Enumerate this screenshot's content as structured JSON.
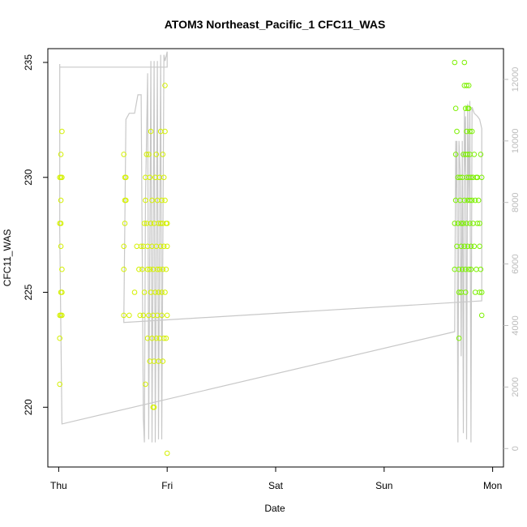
{
  "chart_data": {
    "type": "scatter",
    "title": "ATOM3 Northeast_Pacific_1 CFC11_WAS",
    "xlabel": "Date",
    "ylabel": "CFC11_WAS",
    "x_ticks": [
      {
        "label": "Thu",
        "value": 0
      },
      {
        "label": "Fri",
        "value": 1
      },
      {
        "label": "Sat",
        "value": 2
      },
      {
        "label": "Sun",
        "value": 3
      },
      {
        "label": "Mon",
        "value": 4
      }
    ],
    "x_unit": "days from Thu",
    "xlim": [
      -0.1,
      4.1
    ],
    "ylim": [
      217.4,
      235.6
    ],
    "y_ticks": [
      220,
      225,
      230,
      235
    ],
    "y2_label": "",
    "y2lim": [
      -600,
      13000
    ],
    "y2_ticks": [
      0,
      2000,
      4000,
      6000,
      8000,
      10000,
      12000
    ],
    "colors": {
      "axis": "#000000",
      "axis_right": "#bbbbbb",
      "altitude_line": "#c8c8c8",
      "points_early": "#d4f000",
      "points_late": "#7cf000"
    },
    "series": [
      {
        "name": "CFC11_WAS",
        "points": [
          [
            0.01,
            221
          ],
          [
            0.01,
            223
          ],
          [
            0.01,
            224
          ],
          [
            0.02,
            224
          ],
          [
            0.02,
            225
          ],
          [
            0.01,
            228
          ],
          [
            0.02,
            228
          ],
          [
            0.02,
            229
          ],
          [
            0.01,
            230
          ],
          [
            0.02,
            230
          ],
          [
            0.03,
            230
          ],
          [
            0.02,
            231
          ],
          [
            0.03,
            232
          ],
          [
            0.03,
            226
          ],
          [
            0.02,
            227
          ],
          [
            0.03,
            224
          ],
          [
            0.03,
            225
          ],
          [
            0.6,
            224
          ],
          [
            0.6,
            226
          ],
          [
            0.6,
            227
          ],
          [
            0.61,
            228
          ],
          [
            0.61,
            229
          ],
          [
            0.61,
            230
          ],
          [
            0.62,
            229
          ],
          [
            0.6,
            231
          ],
          [
            0.62,
            230
          ],
          [
            0.65,
            224
          ],
          [
            0.7,
            225
          ],
          [
            0.72,
            227
          ],
          [
            0.74,
            226
          ],
          [
            0.75,
            224
          ],
          [
            0.76,
            227
          ],
          [
            0.77,
            226
          ],
          [
            0.78,
            227
          ],
          [
            0.78,
            224
          ],
          [
            0.79,
            228
          ],
          [
            0.79,
            225
          ],
          [
            0.8,
            221
          ],
          [
            0.8,
            229
          ],
          [
            0.8,
            230
          ],
          [
            0.81,
            231
          ],
          [
            0.81,
            228
          ],
          [
            0.82,
            226
          ],
          [
            0.82,
            223
          ],
          [
            0.82,
            227
          ],
          [
            0.83,
            231
          ],
          [
            0.83,
            224
          ],
          [
            0.84,
            230
          ],
          [
            0.84,
            226
          ],
          [
            0.84,
            222
          ],
          [
            0.85,
            228
          ],
          [
            0.85,
            225
          ],
          [
            0.86,
            223
          ],
          [
            0.86,
            229
          ],
          [
            0.86,
            227
          ],
          [
            0.87,
            224
          ],
          [
            0.87,
            226
          ],
          [
            0.88,
            228
          ],
          [
            0.88,
            222
          ],
          [
            0.88,
            220
          ],
          [
            0.89,
            230
          ],
          [
            0.89,
            225
          ],
          [
            0.9,
            227
          ],
          [
            0.9,
            231
          ],
          [
            0.9,
            223
          ],
          [
            0.91,
            229
          ],
          [
            0.91,
            226
          ],
          [
            0.91,
            224
          ],
          [
            0.92,
            228
          ],
          [
            0.92,
            225
          ],
          [
            0.92,
            222
          ],
          [
            0.93,
            230
          ],
          [
            0.93,
            226
          ],
          [
            0.93,
            223
          ],
          [
            0.94,
            228
          ],
          [
            0.94,
            232
          ],
          [
            0.94,
            227
          ],
          [
            0.95,
            225
          ],
          [
            0.95,
            229
          ],
          [
            0.95,
            224
          ],
          [
            0.96,
            231
          ],
          [
            0.96,
            226
          ],
          [
            0.96,
            228
          ],
          [
            0.97,
            230
          ],
          [
            0.97,
            223
          ],
          [
            0.97,
            227
          ],
          [
            0.98,
            225
          ],
          [
            0.98,
            229
          ],
          [
            0.98,
            232
          ],
          [
            0.98,
            234
          ],
          [
            0.99,
            228
          ],
          [
            0.99,
            226
          ],
          [
            0.99,
            223
          ],
          [
            1.0,
            228
          ],
          [
            1.0,
            227
          ],
          [
            1.0,
            224
          ],
          [
            1.0,
            218
          ],
          [
            0.96,
            222
          ],
          [
            0.85,
            232
          ],
          [
            0.87,
            220
          ],
          [
            3.65,
            235
          ],
          [
            3.65,
            228
          ],
          [
            3.65,
            226
          ],
          [
            3.66,
            233
          ],
          [
            3.66,
            231
          ],
          [
            3.66,
            229
          ],
          [
            3.67,
            227
          ],
          [
            3.67,
            232
          ],
          [
            3.68,
            230
          ],
          [
            3.68,
            228
          ],
          [
            3.69,
            226
          ],
          [
            3.69,
            225
          ],
          [
            3.69,
            223
          ],
          [
            3.7,
            230
          ],
          [
            3.7,
            229
          ],
          [
            3.71,
            228
          ],
          [
            3.71,
            227
          ],
          [
            3.71,
            225
          ],
          [
            3.72,
            230
          ],
          [
            3.72,
            226
          ],
          [
            3.73,
            231
          ],
          [
            3.73,
            228
          ],
          [
            3.74,
            235
          ],
          [
            3.74,
            234
          ],
          [
            3.74,
            229
          ],
          [
            3.74,
            227
          ],
          [
            3.75,
            233
          ],
          [
            3.75,
            231
          ],
          [
            3.75,
            226
          ],
          [
            3.75,
            225
          ],
          [
            3.76,
            234
          ],
          [
            3.76,
            232
          ],
          [
            3.76,
            230
          ],
          [
            3.76,
            228
          ],
          [
            3.77,
            233
          ],
          [
            3.77,
            231
          ],
          [
            3.77,
            229
          ],
          [
            3.77,
            227
          ],
          [
            3.78,
            234
          ],
          [
            3.78,
            233
          ],
          [
            3.78,
            230
          ],
          [
            3.78,
            226
          ],
          [
            3.79,
            232
          ],
          [
            3.79,
            231
          ],
          [
            3.79,
            229
          ],
          [
            3.79,
            228
          ],
          [
            3.8,
            230
          ],
          [
            3.8,
            227
          ],
          [
            3.8,
            226
          ],
          [
            3.81,
            232
          ],
          [
            3.81,
            229
          ],
          [
            3.82,
            230
          ],
          [
            3.82,
            228
          ],
          [
            3.83,
            231
          ],
          [
            3.83,
            227
          ],
          [
            3.84,
            229
          ],
          [
            3.84,
            225
          ],
          [
            3.85,
            230
          ],
          [
            3.85,
            226
          ],
          [
            3.86,
            230
          ],
          [
            3.86,
            228
          ],
          [
            3.87,
            229
          ],
          [
            3.88,
            228
          ],
          [
            3.88,
            227
          ],
          [
            3.88,
            225
          ],
          [
            3.89,
            231
          ],
          [
            3.89,
            226
          ],
          [
            3.9,
            230
          ],
          [
            3.9,
            225
          ],
          [
            3.9,
            224
          ]
        ]
      }
    ],
    "altitude_trace": [
      [
        0.01,
        12500
      ],
      [
        0.01,
        7000
      ],
      [
        0.03,
        800
      ],
      [
        3.65,
        3800
      ],
      [
        3.66,
        10000
      ],
      [
        3.66,
        8000
      ],
      [
        3.67,
        10000
      ],
      [
        3.68,
        200
      ],
      [
        3.69,
        10000
      ],
      [
        3.7,
        9000
      ],
      [
        3.71,
        3000
      ],
      [
        3.72,
        10000
      ],
      [
        3.73,
        500
      ],
      [
        3.74,
        11000
      ],
      [
        3.74,
        9000
      ],
      [
        3.75,
        10800
      ],
      [
        3.76,
        300
      ],
      [
        3.77,
        11200
      ],
      [
        3.78,
        8000
      ],
      [
        3.79,
        11300
      ],
      [
        3.8,
        200
      ],
      [
        3.81,
        11100
      ],
      [
        3.83,
        10900
      ],
      [
        3.86,
        10800
      ],
      [
        3.88,
        10700
      ],
      [
        3.9,
        10400
      ],
      [
        3.9,
        5800
      ],
      [
        3.9,
        4800
      ],
      [
        0.6,
        4100
      ],
      [
        0.62,
        10700
      ],
      [
        0.65,
        10900
      ],
      [
        0.7,
        10900
      ],
      [
        0.73,
        11500
      ],
      [
        0.76,
        11500
      ],
      [
        0.78,
        1000
      ],
      [
        0.79,
        200
      ],
      [
        0.8,
        8000
      ],
      [
        0.82,
        12200
      ],
      [
        0.83,
        300
      ],
      [
        0.85,
        12600
      ],
      [
        0.86,
        200
      ],
      [
        0.88,
        12600
      ],
      [
        0.89,
        200
      ],
      [
        0.91,
        12600
      ],
      [
        0.92,
        300
      ],
      [
        0.94,
        12800
      ],
      [
        0.95,
        300
      ],
      [
        0.97,
        12800
      ],
      [
        0.98,
        12600
      ],
      [
        1.0,
        12900
      ],
      [
        1.0,
        12400
      ],
      [
        0.01,
        12400
      ],
      [
        0.03,
        12400
      ]
    ]
  }
}
